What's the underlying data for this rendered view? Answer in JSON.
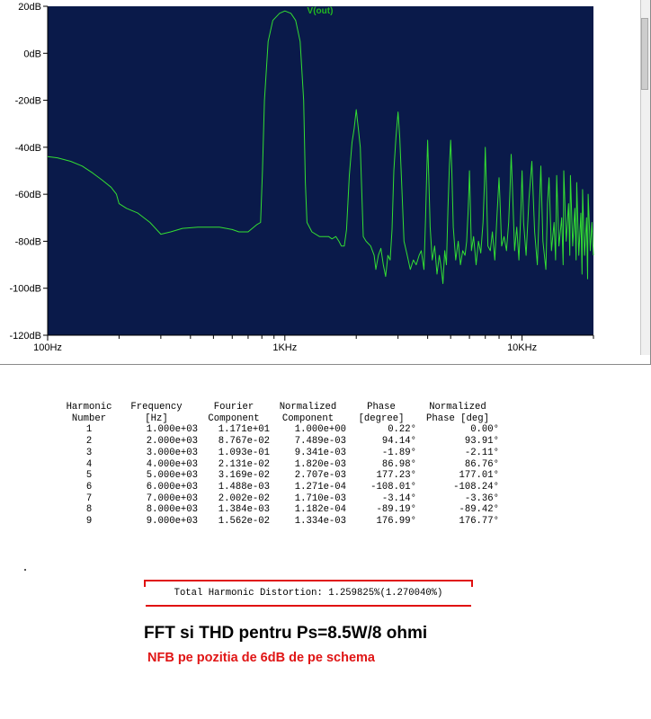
{
  "chart_data": {
    "type": "line",
    "title": "V(out)",
    "xscale": "log",
    "xlim": [
      100,
      20000
    ],
    "ylim": [
      -120,
      20
    ],
    "yticks": [
      20,
      0,
      -20,
      -40,
      -60,
      -80,
      -100,
      -120
    ],
    "ytick_labels": [
      "20dB",
      "0dB",
      "-20dB",
      "-40dB",
      "-60dB",
      "-80dB",
      "-100dB",
      "-120dB"
    ],
    "xtick_labels": [
      {
        "value": 100,
        "label": "100Hz"
      },
      {
        "value": 1000,
        "label": "1KHz"
      },
      {
        "value": 10000,
        "label": "10KHz"
      }
    ],
    "grid": false,
    "colors": {
      "background": "#0a1a4a",
      "trace": "#33dd33",
      "title": "#22b822",
      "axis": "#000000"
    },
    "series": [
      {
        "name": "V(out)",
        "points": [
          [
            100,
            -44
          ],
          [
            110,
            -44.5
          ],
          [
            125,
            -46
          ],
          [
            140,
            -48
          ],
          [
            155,
            -51
          ],
          [
            170,
            -54
          ],
          [
            185,
            -57
          ],
          [
            195,
            -60
          ],
          [
            200,
            -64
          ],
          [
            215,
            -66
          ],
          [
            240,
            -68
          ],
          [
            270,
            -72
          ],
          [
            300,
            -77
          ],
          [
            330,
            -76
          ],
          [
            370,
            -74.5
          ],
          [
            430,
            -74
          ],
          [
            530,
            -74
          ],
          [
            600,
            -75
          ],
          [
            640,
            -76
          ],
          [
            700,
            -76
          ],
          [
            760,
            -73
          ],
          [
            790,
            -72
          ],
          [
            805,
            -50
          ],
          [
            820,
            -20
          ],
          [
            850,
            5
          ],
          [
            890,
            14
          ],
          [
            950,
            17
          ],
          [
            1000,
            18
          ],
          [
            1060,
            17
          ],
          [
            1110,
            14
          ],
          [
            1160,
            5
          ],
          [
            1200,
            -20
          ],
          [
            1220,
            -55
          ],
          [
            1240,
            -72
          ],
          [
            1300,
            -76
          ],
          [
            1400,
            -78
          ],
          [
            1480,
            -78
          ],
          [
            1530,
            -78
          ],
          [
            1580,
            -79
          ],
          [
            1640,
            -78
          ],
          [
            1690,
            -80
          ],
          [
            1730,
            -82
          ],
          [
            1780,
            -82
          ],
          [
            1820,
            -75
          ],
          [
            1870,
            -52
          ],
          [
            1920,
            -38
          ],
          [
            1960,
            -32
          ],
          [
            2000,
            -24
          ],
          [
            2040,
            -32
          ],
          [
            2080,
            -40
          ],
          [
            2140,
            -78
          ],
          [
            2200,
            -80
          ],
          [
            2300,
            -82
          ],
          [
            2380,
            -86
          ],
          [
            2420,
            -92
          ],
          [
            2480,
            -86
          ],
          [
            2540,
            -83
          ],
          [
            2600,
            -90
          ],
          [
            2660,
            -95
          ],
          [
            2720,
            -86
          ],
          [
            2780,
            -88
          ],
          [
            2830,
            -75
          ],
          [
            2880,
            -50
          ],
          [
            2940,
            -36
          ],
          [
            3000,
            -25
          ],
          [
            3050,
            -36
          ],
          [
            3120,
            -60
          ],
          [
            3180,
            -80
          ],
          [
            3280,
            -86
          ],
          [
            3380,
            -92
          ],
          [
            3480,
            -88
          ],
          [
            3580,
            -90
          ],
          [
            3680,
            -86
          ],
          [
            3760,
            -84
          ],
          [
            3860,
            -92
          ],
          [
            3920,
            -70
          ],
          [
            3960,
            -52
          ],
          [
            4000,
            -37
          ],
          [
            4040,
            -52
          ],
          [
            4100,
            -74
          ],
          [
            4180,
            -88
          ],
          [
            4280,
            -82
          ],
          [
            4380,
            -94
          ],
          [
            4480,
            -86
          ],
          [
            4570,
            -92
          ],
          [
            4640,
            -98
          ],
          [
            4720,
            -84
          ],
          [
            4800,
            -90
          ],
          [
            4870,
            -66
          ],
          [
            4940,
            -48
          ],
          [
            5000,
            -37
          ],
          [
            5060,
            -50
          ],
          [
            5130,
            -74
          ],
          [
            5250,
            -88
          ],
          [
            5380,
            -80
          ],
          [
            5500,
            -90
          ],
          [
            5620,
            -84
          ],
          [
            5750,
            -86
          ],
          [
            5840,
            -80
          ],
          [
            5920,
            -68
          ],
          [
            5970,
            -58
          ],
          [
            6000,
            -50
          ],
          [
            6040,
            -60
          ],
          [
            6120,
            -84
          ],
          [
            6250,
            -78
          ],
          [
            6400,
            -90
          ],
          [
            6550,
            -80
          ],
          [
            6700,
            -85
          ],
          [
            6850,
            -72
          ],
          [
            6940,
            -56
          ],
          [
            7000,
            -40
          ],
          [
            7070,
            -56
          ],
          [
            7180,
            -82
          ],
          [
            7350,
            -84
          ],
          [
            7500,
            -76
          ],
          [
            7680,
            -88
          ],
          [
            7830,
            -70
          ],
          [
            7930,
            -60
          ],
          [
            8000,
            -53
          ],
          [
            8070,
            -62
          ],
          [
            8200,
            -82
          ],
          [
            8400,
            -78
          ],
          [
            8600,
            -84
          ],
          [
            8780,
            -72
          ],
          [
            8900,
            -58
          ],
          [
            9000,
            -43
          ],
          [
            9100,
            -56
          ],
          [
            9300,
            -84
          ],
          [
            9500,
            -74
          ],
          [
            9700,
            -88
          ],
          [
            9900,
            -66
          ],
          [
            10000,
            -50
          ],
          [
            10150,
            -72
          ],
          [
            10400,
            -86
          ],
          [
            10700,
            -62
          ],
          [
            11000,
            -46
          ],
          [
            11300,
            -76
          ],
          [
            11600,
            -90
          ],
          [
            11800,
            -68
          ],
          [
            12000,
            -48
          ],
          [
            12250,
            -80
          ],
          [
            12600,
            -92
          ],
          [
            12800,
            -64
          ],
          [
            13000,
            -53
          ],
          [
            13300,
            -84
          ],
          [
            13650,
            -72
          ],
          [
            13850,
            -88
          ],
          [
            14000,
            -52
          ],
          [
            14300,
            -82
          ],
          [
            14700,
            -70
          ],
          [
            14900,
            -90
          ],
          [
            15000,
            -50
          ],
          [
            15350,
            -80
          ],
          [
            15700,
            -64
          ],
          [
            15900,
            -86
          ],
          [
            16000,
            -52
          ],
          [
            16350,
            -82
          ],
          [
            16700,
            -66
          ],
          [
            16900,
            -88
          ],
          [
            17000,
            -55
          ],
          [
            17350,
            -86
          ],
          [
            17700,
            -68
          ],
          [
            17900,
            -94
          ],
          [
            18000,
            -58
          ],
          [
            18350,
            -86
          ],
          [
            18700,
            -70
          ],
          [
            18900,
            -96
          ],
          [
            19000,
            -60
          ],
          [
            19400,
            -84
          ],
          [
            19700,
            -72
          ],
          [
            20000,
            -86
          ]
        ]
      }
    ]
  },
  "fourier_table": {
    "headers": [
      [
        "Harmonic",
        "Number"
      ],
      [
        "Frequency",
        "[Hz]"
      ],
      [
        "Fourier",
        "Component"
      ],
      [
        "Normalized",
        "Component"
      ],
      [
        "Phase",
        "[degree]"
      ],
      [
        "Normalized",
        "Phase [deg]"
      ]
    ],
    "rows": [
      [
        "1",
        "1.000e+03",
        "1.171e+01",
        "1.000e+00",
        "0.22°",
        "0.00°"
      ],
      [
        "2",
        "2.000e+03",
        "8.767e-02",
        "7.489e-03",
        "94.14°",
        "93.91°"
      ],
      [
        "3",
        "3.000e+03",
        "1.093e-01",
        "9.341e-03",
        "-1.89°",
        "-2.11°"
      ],
      [
        "4",
        "4.000e+03",
        "2.131e-02",
        "1.820e-03",
        "86.98°",
        "86.76°"
      ],
      [
        "5",
        "5.000e+03",
        "3.169e-02",
        "2.707e-03",
        "177.23°",
        "177.01°"
      ],
      [
        "6",
        "6.000e+03",
        "1.488e-03",
        "1.271e-04",
        "-108.01°",
        "-108.24°"
      ],
      [
        "7",
        "7.000e+03",
        "2.002e-02",
        "1.710e-03",
        "-3.14°",
        "-3.36°"
      ],
      [
        "8",
        "8.000e+03",
        "1.384e-03",
        "1.182e-04",
        "-89.19°",
        "-89.42°"
      ],
      [
        "9",
        "9.000e+03",
        "1.562e-02",
        "1.334e-03",
        "176.99°",
        "176.77°"
      ]
    ]
  },
  "thd": {
    "label": "Total Harmonic Distortion: 1.259825%(1.270040%)",
    "accent": "#e01010"
  },
  "captions": {
    "main": "FFT si THD pentru Ps=8.5W/8 ohmi",
    "sub": "NFB pe pozitia de 6dB de pe schema",
    "sub_color": "#e01515"
  }
}
